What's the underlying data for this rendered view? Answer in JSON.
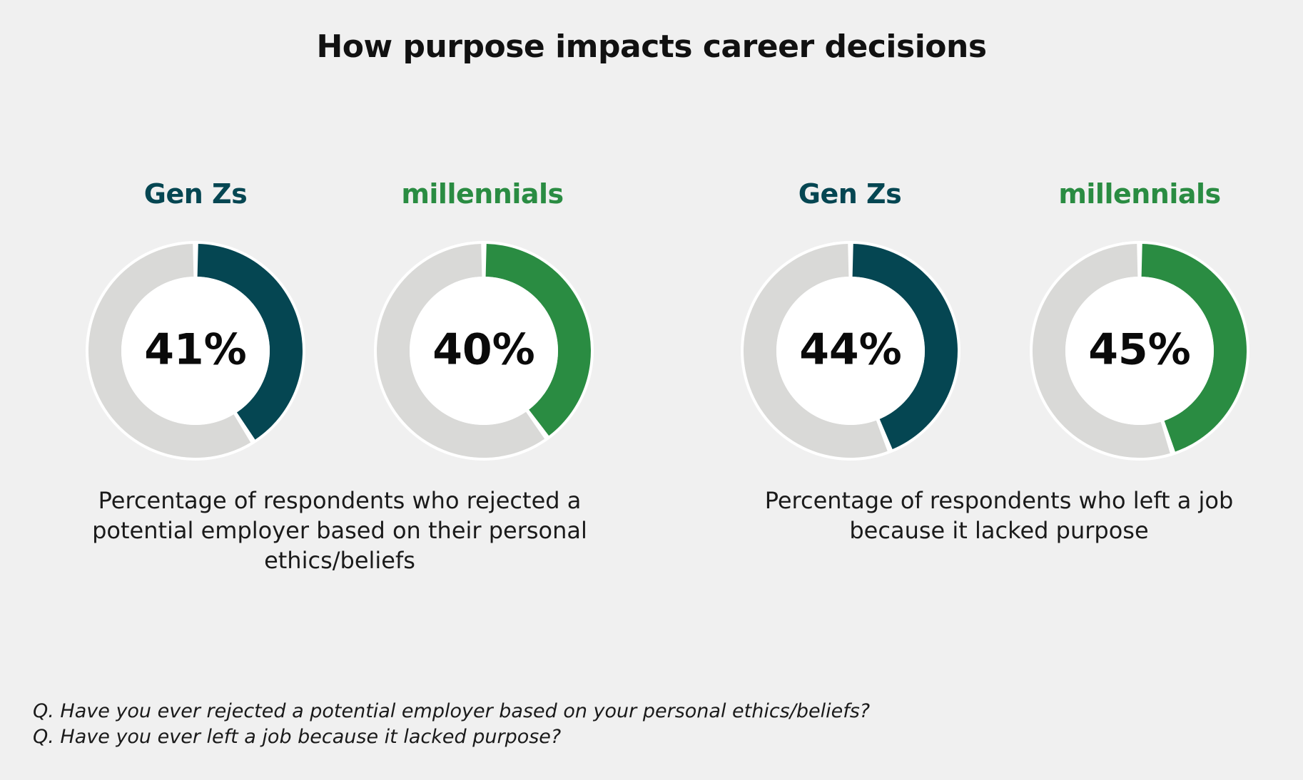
{
  "title": "How purpose impacts career decisions",
  "colors": {
    "genz": "#054652",
    "millennials": "#2a8c42",
    "track": "#d9d9d7",
    "background": "#f0f0f0"
  },
  "chart_data": [
    {
      "type": "pie",
      "title": "Percentage of respondents who rejected a potential employer based on their personal ethics/beliefs",
      "caption_lines": [
        "Percentage of respondents who rejected a",
        "potential employer based on their personal",
        "ethics/beliefs"
      ],
      "series": [
        {
          "name": "Gen Zs",
          "value": 41,
          "label": "41%",
          "color": "#054652"
        },
        {
          "name": "millennials",
          "value": 40,
          "label": "40%",
          "color": "#2a8c42"
        }
      ]
    },
    {
      "type": "pie",
      "title": "Percentage of respondents who left a job because it lacked purpose",
      "caption_lines": [
        "Percentage of respondents who left a job",
        "because it lacked purpose"
      ],
      "series": [
        {
          "name": "Gen Zs",
          "value": 44,
          "label": "44%",
          "color": "#054652"
        },
        {
          "name": "millennials",
          "value": 45,
          "label": "45%",
          "color": "#2a8c42"
        }
      ]
    }
  ],
  "footnotes": [
    "Q. Have you ever rejected a potential employer based on your personal ethics/beliefs?",
    "Q. Have you ever left a job because it lacked purpose?"
  ]
}
